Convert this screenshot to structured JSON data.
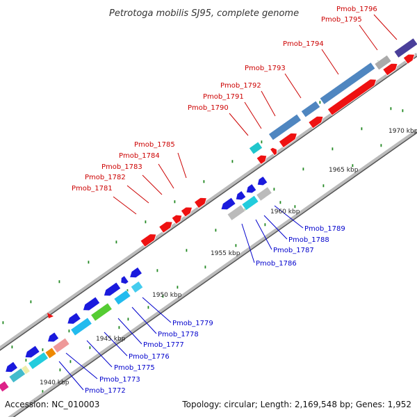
{
  "title": "Petrotoga mobilis SJ95, complete genome",
  "footer": {
    "accession": "Accession: NC_010003",
    "stats": "Topology: circular; Length: 2,169,548 bp; Genes: 1,952"
  },
  "colors": {
    "forward_gene": "#ee1111",
    "reverse_gene": "#1a1add",
    "backbone": "#888888",
    "tick": "#228822",
    "label_forward": "#cc0000",
    "label_reverse": "#0000cc"
  },
  "scale": {
    "unit": "kbp",
    "labels": [
      "1940 kbp",
      "1945 kbp",
      "1950 kbp",
      "1955 kbp",
      "1960 kbp",
      "1965 kbp",
      "1970 kbp"
    ]
  },
  "genes_forward": [
    "Pmob_1781",
    "Pmob_1782",
    "Pmob_1783",
    "Pmob_1784",
    "Pmob_1785",
    "Pmob_1790",
    "Pmob_1791",
    "Pmob_1792",
    "Pmob_1793",
    "Pmob_1794",
    "Pmob_1795",
    "Pmob_1796"
  ],
  "genes_reverse": [
    "Pmob_1772",
    "Pmob_1773",
    "Pmob_1775",
    "Pmob_1776",
    "Pmob_1777",
    "Pmob_1778",
    "Pmob_1779",
    "Pmob_1786",
    "Pmob_1787",
    "Pmob_1788",
    "Pmob_1789"
  ]
}
